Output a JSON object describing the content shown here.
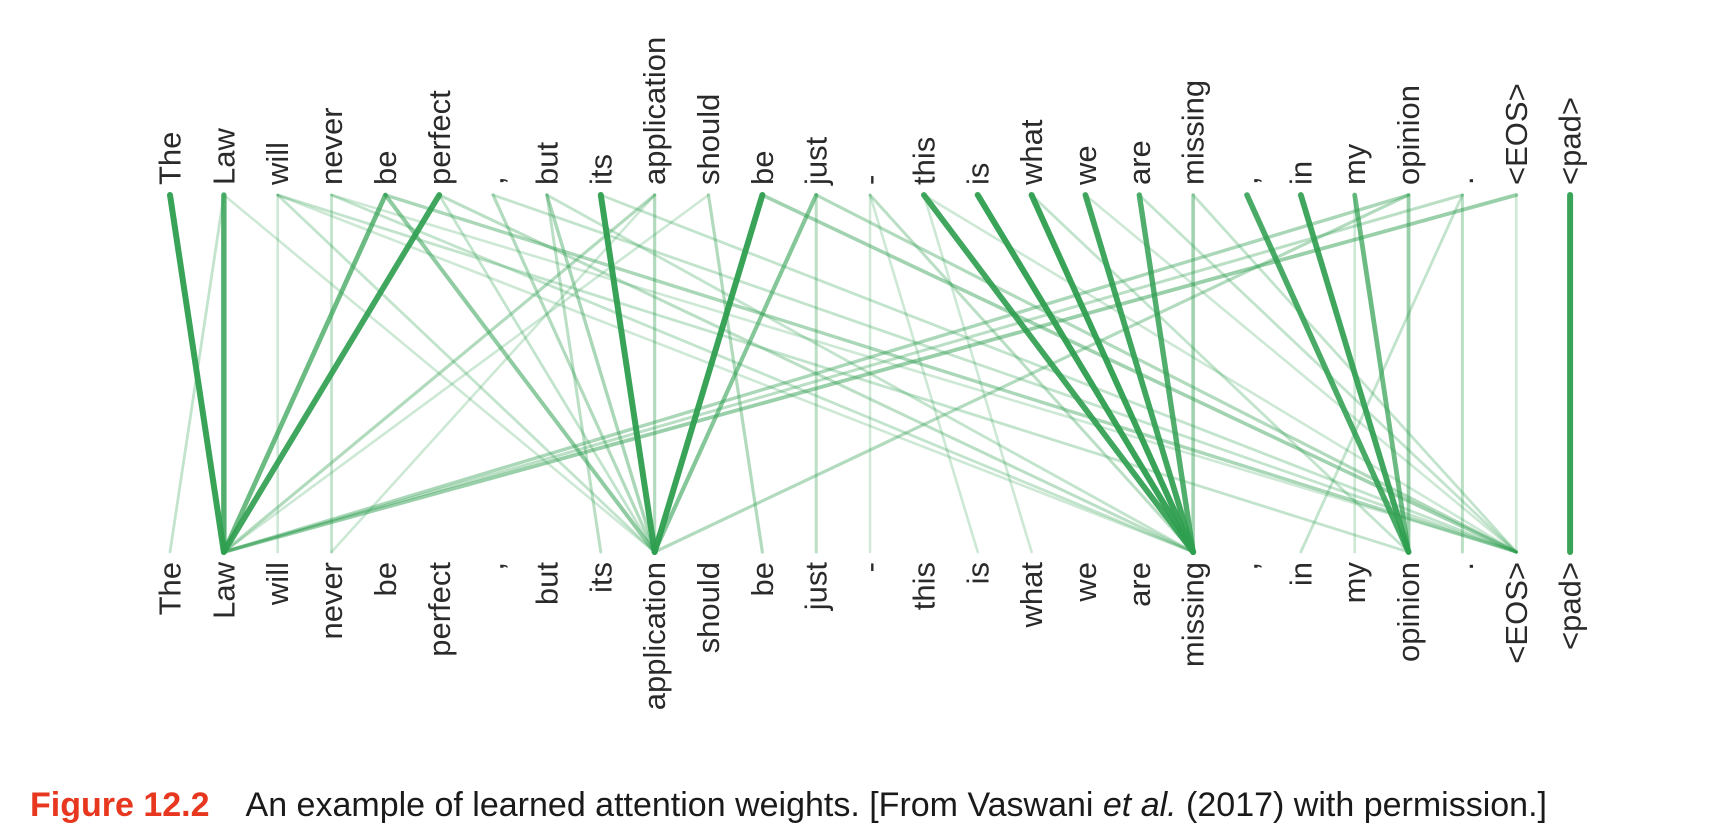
{
  "diagram": {
    "tokens": [
      "The",
      "Law",
      "will",
      "never",
      "be",
      "perfect",
      ",",
      "but",
      "its",
      "application",
      "should",
      "be",
      "just",
      "-",
      "this",
      "is",
      "what",
      "we",
      "are",
      "missing",
      ",",
      "in",
      "my",
      "opinion",
      ".",
      "<EOS>",
      "<pad>"
    ],
    "line_color": "#2e9e4f",
    "attention_links": [
      {
        "from": 0,
        "to": 1,
        "weight": 1.0
      },
      {
        "from": 1,
        "to": 1,
        "weight": 0.85
      },
      {
        "from": 4,
        "to": 1,
        "weight": 0.7
      },
      {
        "from": 5,
        "to": 1,
        "weight": 0.95
      },
      {
        "from": 8,
        "to": 9,
        "weight": 1.0
      },
      {
        "from": 11,
        "to": 9,
        "weight": 1.0
      },
      {
        "from": 9,
        "to": 9,
        "weight": 0.3
      },
      {
        "from": 12,
        "to": 9,
        "weight": 0.55
      },
      {
        "from": 14,
        "to": 19,
        "weight": 0.95
      },
      {
        "from": 15,
        "to": 19,
        "weight": 1.0
      },
      {
        "from": 16,
        "to": 19,
        "weight": 1.0
      },
      {
        "from": 17,
        "to": 19,
        "weight": 0.95
      },
      {
        "from": 18,
        "to": 19,
        "weight": 0.85
      },
      {
        "from": 19,
        "to": 19,
        "weight": 0.4
      },
      {
        "from": 20,
        "to": 23,
        "weight": 0.9
      },
      {
        "from": 21,
        "to": 23,
        "weight": 0.95
      },
      {
        "from": 22,
        "to": 23,
        "weight": 0.7
      },
      {
        "from": 23,
        "to": 23,
        "weight": 0.45
      },
      {
        "from": 26,
        "to": 26,
        "weight": 1.0
      },
      {
        "from": 4,
        "to": 9,
        "weight": 0.5
      },
      {
        "from": 5,
        "to": 19,
        "weight": 0.25
      },
      {
        "from": 3,
        "to": 19,
        "weight": 0.2
      },
      {
        "from": 2,
        "to": 23,
        "weight": 0.2
      },
      {
        "from": 4,
        "to": 25,
        "weight": 0.35
      },
      {
        "from": 11,
        "to": 25,
        "weight": 0.4
      },
      {
        "from": 7,
        "to": 9,
        "weight": 0.35
      },
      {
        "from": 6,
        "to": 9,
        "weight": 0.3
      },
      {
        "from": 12,
        "to": 25,
        "weight": 0.3
      },
      {
        "from": 25,
        "to": 1,
        "weight": 0.45
      },
      {
        "from": 23,
        "to": 1,
        "weight": 0.35
      },
      {
        "from": 24,
        "to": 1,
        "weight": 0.25
      },
      {
        "from": 9,
        "to": 1,
        "weight": 0.3
      },
      {
        "from": 23,
        "to": 9,
        "weight": 0.3
      },
      {
        "from": 3,
        "to": 3,
        "weight": 0.2
      },
      {
        "from": 2,
        "to": 2,
        "weight": 0.15
      },
      {
        "from": 1,
        "to": 0,
        "weight": 0.2
      },
      {
        "from": 10,
        "to": 11,
        "weight": 0.3
      },
      {
        "from": 7,
        "to": 8,
        "weight": 0.25
      },
      {
        "from": 13,
        "to": 19,
        "weight": 0.25
      },
      {
        "from": 13,
        "to": 15,
        "weight": 0.15
      },
      {
        "from": 14,
        "to": 16,
        "weight": 0.15
      },
      {
        "from": 19,
        "to": 25,
        "weight": 0.2
      },
      {
        "from": 18,
        "to": 25,
        "weight": 0.2
      },
      {
        "from": 16,
        "to": 23,
        "weight": 0.2
      },
      {
        "from": 17,
        "to": 25,
        "weight": 0.15
      },
      {
        "from": 24,
        "to": 24,
        "weight": 0.25
      },
      {
        "from": 25,
        "to": 25,
        "weight": 0.15
      },
      {
        "from": 22,
        "to": 22,
        "weight": 0.15
      },
      {
        "from": 5,
        "to": 9,
        "weight": 0.2
      },
      {
        "from": 2,
        "to": 9,
        "weight": 0.2
      },
      {
        "from": 7,
        "to": 19,
        "weight": 0.2
      },
      {
        "from": 8,
        "to": 25,
        "weight": 0.2
      },
      {
        "from": 9,
        "to": 3,
        "weight": 0.15
      },
      {
        "from": 10,
        "to": 1,
        "weight": 0.15
      },
      {
        "from": 12,
        "to": 12,
        "weight": 0.25
      },
      {
        "from": 1,
        "to": 9,
        "weight": 0.15
      },
      {
        "from": 14,
        "to": 25,
        "weight": 0.15
      },
      {
        "from": 6,
        "to": 25,
        "weight": 0.2
      },
      {
        "from": 3,
        "to": 25,
        "weight": 0.15
      },
      {
        "from": 2,
        "to": 19,
        "weight": 0.15
      },
      {
        "from": 24,
        "to": 21,
        "weight": 0.2
      },
      {
        "from": 13,
        "to": 13,
        "weight": 0.12
      }
    ]
  },
  "caption": {
    "label": "Figure 12.2",
    "text_before": "An example of learned attention weights. [From Vaswani ",
    "text_italic": "et al.",
    "text_after": " (2017) with permission.]"
  }
}
